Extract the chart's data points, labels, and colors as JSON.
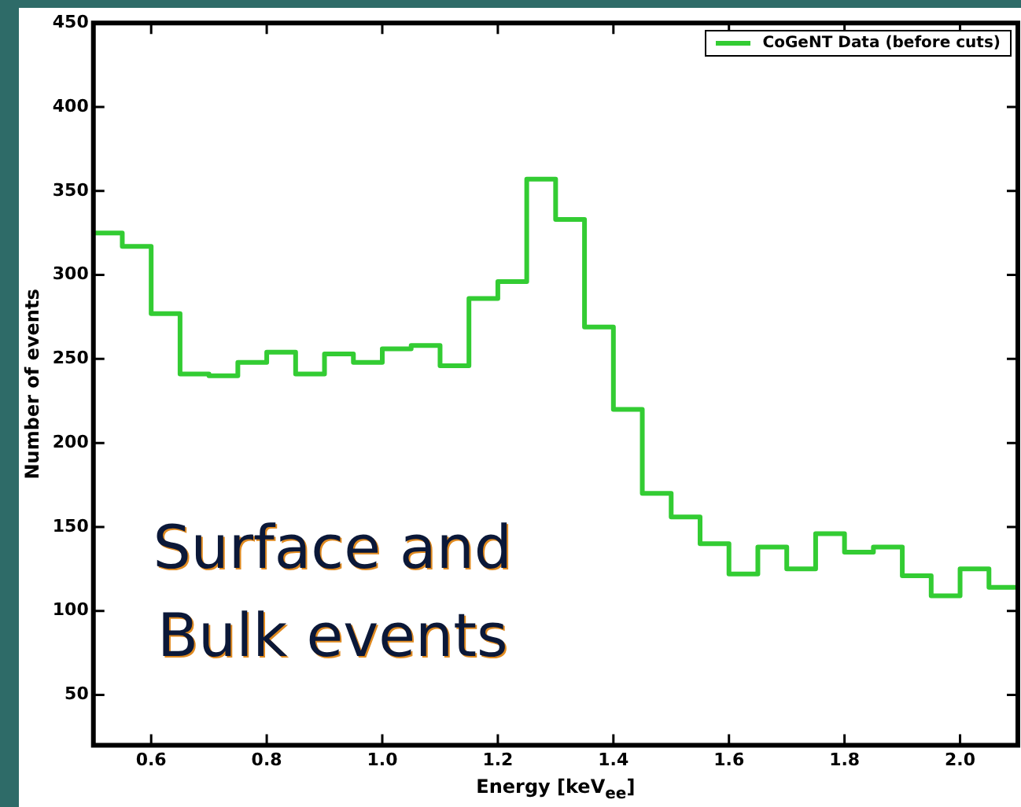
{
  "chart_data": {
    "type": "histogram",
    "ylabel": "Number of events",
    "xlabel": "Energy [keV$_{ee}$]",
    "annotations": [
      "Surface and Bulk events"
    ],
    "bins": [
      0.5,
      0.55,
      0.6,
      0.65,
      0.7,
      0.75,
      0.8,
      0.85,
      0.9,
      0.95,
      1.0,
      1.05,
      1.1,
      1.15,
      1.2,
      1.25,
      1.3,
      1.35,
      1.4,
      1.45,
      1.5,
      1.55,
      1.6,
      1.65,
      1.7,
      1.75,
      1.8,
      1.85,
      1.9,
      1.95,
      2.0,
      2.05,
      2.1
    ],
    "series": [
      {
        "name": "CoGeNT Data (before cuts)",
        "color": "#33cc33",
        "values": [
          325,
          317,
          277,
          241,
          240,
          248,
          254,
          241,
          253,
          248,
          256,
          258,
          246,
          286,
          296,
          357,
          333,
          269,
          220,
          170,
          156,
          140,
          122,
          138,
          125,
          146,
          135,
          138,
          121,
          109,
          125,
          114
        ]
      }
    ],
    "xlim": [
      0.5,
      2.1
    ],
    "ylim": [
      20,
      450
    ],
    "xticks": [
      {
        "value": 0.6,
        "label": "0.6"
      },
      {
        "value": 0.8,
        "label": "0.8"
      },
      {
        "value": 1.0,
        "label": "1.0"
      },
      {
        "value": 1.2,
        "label": "1.2"
      },
      {
        "value": 1.4,
        "label": "1.4"
      },
      {
        "value": 1.6,
        "label": "1.6"
      },
      {
        "value": 1.8,
        "label": "1.8"
      },
      {
        "value": 2.0,
        "label": "2.0"
      }
    ],
    "yticks": [
      50,
      100,
      150,
      200,
      250,
      300,
      350,
      400,
      450
    ],
    "grid": false,
    "legend": "top right",
    "line_style": "solid"
  }
}
